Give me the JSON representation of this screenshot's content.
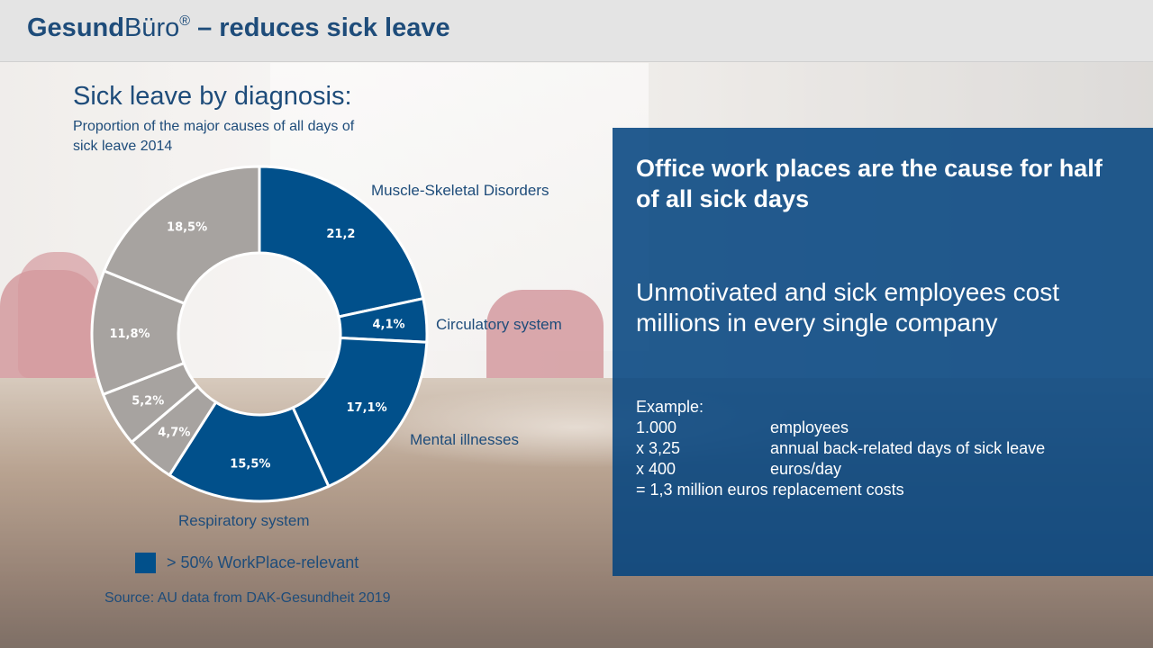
{
  "header": {
    "brand_bold": "Gesund",
    "brand_light": "Büro",
    "registered": "®",
    "title_rest": " – reduces sick leave"
  },
  "chart_heading": "Sick leave by diagnosis:",
  "chart_data": {
    "type": "pie",
    "variant": "donut",
    "title": "Proportion of the major causes of all days of sick leave 2014",
    "slices": [
      {
        "category": "Muscle-Skeletal Disorders",
        "value": 21.2,
        "label": "21,2",
        "workplace_relevant": true,
        "color": "#01508b"
      },
      {
        "category": "Circulatory system",
        "value": 4.1,
        "label": "4,1%",
        "workplace_relevant": true,
        "color": "#01508b"
      },
      {
        "category": "Mental illnesses",
        "value": 17.1,
        "label": "17,1%",
        "workplace_relevant": true,
        "color": "#01508b"
      },
      {
        "category": "Respiratory system",
        "value": 15.5,
        "label": "15,5%",
        "workplace_relevant": true,
        "color": "#01508b"
      },
      {
        "category": "",
        "value": 4.7,
        "label": "4,7%",
        "workplace_relevant": false,
        "color": "#a7a3a0"
      },
      {
        "category": "",
        "value": 5.2,
        "label": "5,2%",
        "workplace_relevant": false,
        "color": "#a7a3a0"
      },
      {
        "category": "",
        "value": 11.8,
        "label": "11,8%",
        "workplace_relevant": false,
        "color": "#a7a3a0"
      },
      {
        "category": "",
        "value": 18.5,
        "label": "18,5%",
        "workplace_relevant": false,
        "color": "#a7a3a0"
      }
    ],
    "legend": [
      {
        "label": "> 50% WorkPlace-relevant",
        "color": "#01508b"
      }
    ],
    "legend_position": "bottom"
  },
  "source": "Source: AU data from DAK-Gesundheit 2019",
  "panel": {
    "headline": "Office work places are the cause for half of all sick days",
    "claim": "Unmotivated and sick employees cost millions in every single company",
    "example_label": "Example:",
    "example_rows": [
      {
        "value": "1.000",
        "desc": "employees"
      },
      {
        "value": "x 3,25",
        "desc": "annual back-related days of sick leave"
      },
      {
        "value": "x 400",
        "desc": "euros/day"
      }
    ],
    "result": "= 1,3 million euros replacement costs"
  },
  "colors": {
    "title_blue": "#1e4c7a",
    "segment_blue": "#01508b",
    "segment_gray": "#a7a3a0",
    "panel_blue": "#044480"
  }
}
